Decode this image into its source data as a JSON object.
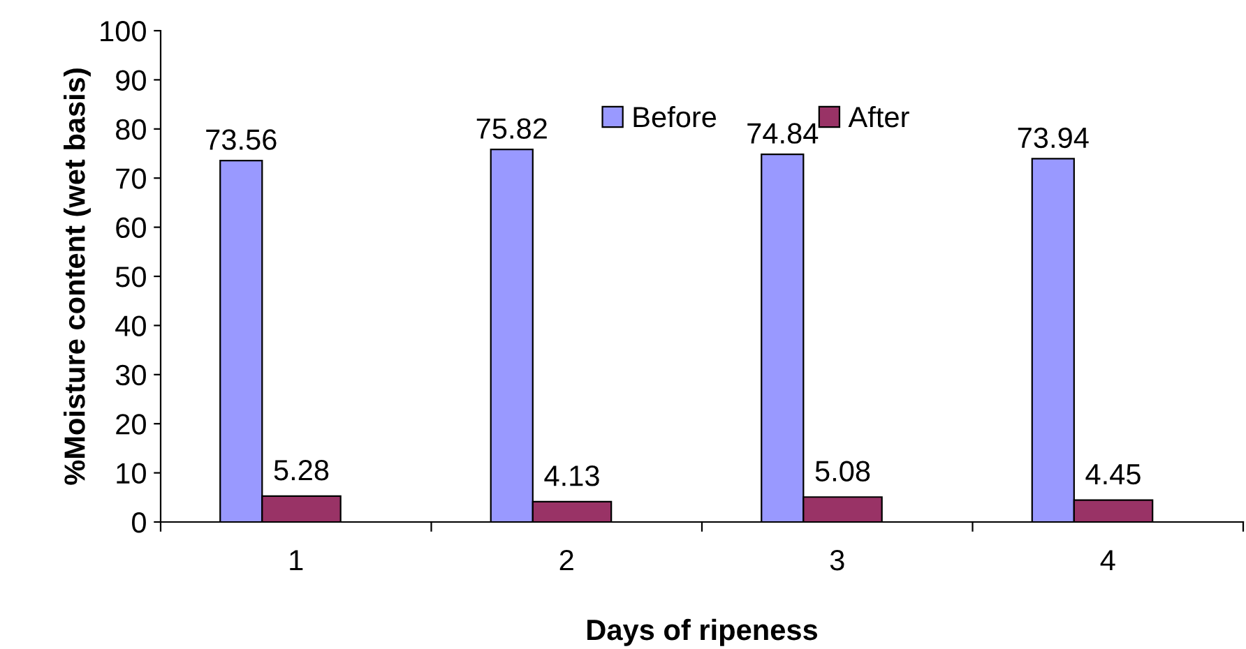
{
  "chart_data": {
    "type": "bar",
    "xlabel": "Days of ripeness",
    "ylabel": "%Moisture content (wet basis)",
    "categories": [
      "1",
      "2",
      "3",
      "4"
    ],
    "series": [
      {
        "name": "Before",
        "color": "#9999ff",
        "values": [
          73.56,
          75.82,
          74.84,
          73.94
        ]
      },
      {
        "name": "After",
        "color": "#993366",
        "values": [
          5.28,
          4.13,
          5.08,
          4.45
        ]
      }
    ],
    "ylim": [
      0,
      100
    ],
    "yticks": [
      0,
      10,
      20,
      30,
      40,
      50,
      60,
      70,
      80,
      90,
      100
    ],
    "data_labels": true,
    "legend": "top",
    "grid": false
  }
}
